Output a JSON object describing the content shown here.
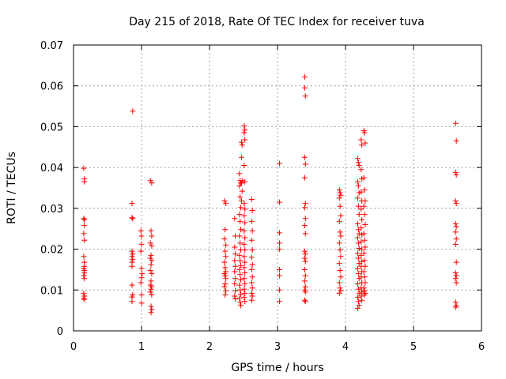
{
  "chart_data": {
    "type": "scatter",
    "title": "Day 215 of 2018, Rate Of TEC Index for receiver tuva",
    "xlabel": "GPS time / hours",
    "ylabel": "ROTI / TECUs",
    "xlim": [
      0,
      6
    ],
    "ylim": [
      0,
      0.07
    ],
    "xticks": [
      "0",
      "1",
      "2",
      "3",
      "4",
      "5",
      "6"
    ],
    "yticks": [
      "0",
      "0.01",
      "0.02",
      "0.03",
      "0.04",
      "0.05",
      "0.06",
      "0.07"
    ],
    "grid": true,
    "marker": "+",
    "color": "#ff0000",
    "series": [
      {
        "name": "ROTI",
        "points": [
          [
            0.15,
            0.0398
          ],
          [
            0.16,
            0.0372
          ],
          [
            0.16,
            0.0365
          ],
          [
            0.15,
            0.0275
          ],
          [
            0.16,
            0.0272
          ],
          [
            0.16,
            0.0258
          ],
          [
            0.15,
            0.0238
          ],
          [
            0.16,
            0.0222
          ],
          [
            0.15,
            0.0182
          ],
          [
            0.16,
            0.0168
          ],
          [
            0.16,
            0.0158
          ],
          [
            0.15,
            0.0152
          ],
          [
            0.16,
            0.0148
          ],
          [
            0.16,
            0.0142
          ],
          [
            0.15,
            0.0135
          ],
          [
            0.16,
            0.0128
          ],
          [
            0.15,
            0.0092
          ],
          [
            0.16,
            0.0085
          ],
          [
            0.15,
            0.008
          ],
          [
            0.16,
            0.0077
          ],
          [
            0.87,
            0.0538
          ],
          [
            0.86,
            0.0312
          ],
          [
            0.86,
            0.0277
          ],
          [
            0.87,
            0.0275
          ],
          [
            0.86,
            0.0195
          ],
          [
            0.87,
            0.0188
          ],
          [
            0.86,
            0.0182
          ],
          [
            0.87,
            0.0175
          ],
          [
            0.86,
            0.0168
          ],
          [
            0.86,
            0.0158
          ],
          [
            0.86,
            0.0112
          ],
          [
            0.87,
            0.0088
          ],
          [
            0.86,
            0.0083
          ],
          [
            0.86,
            0.0072
          ],
          [
            0.99,
            0.0245
          ],
          [
            1.0,
            0.0232
          ],
          [
            1.0,
            0.0212
          ],
          [
            0.99,
            0.0195
          ],
          [
            1.0,
            0.0153
          ],
          [
            1.01,
            0.014
          ],
          [
            1.0,
            0.013
          ],
          [
            0.99,
            0.0118
          ],
          [
            1.0,
            0.0088
          ],
          [
            1.0,
            0.0068
          ],
          [
            1.13,
            0.0368
          ],
          [
            1.15,
            0.0362
          ],
          [
            1.14,
            0.0245
          ],
          [
            1.15,
            0.0232
          ],
          [
            1.13,
            0.0215
          ],
          [
            1.15,
            0.0208
          ],
          [
            1.14,
            0.0185
          ],
          [
            1.13,
            0.0178
          ],
          [
            1.15,
            0.0172
          ],
          [
            1.14,
            0.0162
          ],
          [
            1.13,
            0.0148
          ],
          [
            1.15,
            0.014
          ],
          [
            1.14,
            0.0122
          ],
          [
            1.13,
            0.0112
          ],
          [
            1.15,
            0.0108
          ],
          [
            1.14,
            0.0102
          ],
          [
            1.13,
            0.0095
          ],
          [
            1.15,
            0.0088
          ],
          [
            1.14,
            0.006
          ],
          [
            1.15,
            0.0052
          ],
          [
            1.14,
            0.0045
          ],
          [
            2.22,
            0.0318
          ],
          [
            2.24,
            0.0312
          ],
          [
            2.23,
            0.0248
          ],
          [
            2.22,
            0.0225
          ],
          [
            2.24,
            0.021
          ],
          [
            2.23,
            0.0195
          ],
          [
            2.24,
            0.0182
          ],
          [
            2.22,
            0.0168
          ],
          [
            2.23,
            0.0155
          ],
          [
            2.24,
            0.0145
          ],
          [
            2.22,
            0.014
          ],
          [
            2.23,
            0.0135
          ],
          [
            2.24,
            0.0128
          ],
          [
            2.23,
            0.0115
          ],
          [
            2.22,
            0.0108
          ],
          [
            2.24,
            0.0098
          ],
          [
            2.23,
            0.0088
          ],
          [
            2.37,
            0.0275
          ],
          [
            2.38,
            0.0232
          ],
          [
            2.37,
            0.0205
          ],
          [
            2.38,
            0.0188
          ],
          [
            2.37,
            0.0172
          ],
          [
            2.38,
            0.0158
          ],
          [
            2.37,
            0.0145
          ],
          [
            2.38,
            0.0128
          ],
          [
            2.37,
            0.0115
          ],
          [
            2.38,
            0.0098
          ],
          [
            2.37,
            0.0085
          ],
          [
            2.38,
            0.0078
          ],
          [
            2.44,
            0.0385
          ],
          [
            2.45,
            0.0368
          ],
          [
            2.46,
            0.0362
          ],
          [
            2.44,
            0.0355
          ],
          [
            2.45,
            0.0328
          ],
          [
            2.46,
            0.0302
          ],
          [
            2.44,
            0.0285
          ],
          [
            2.45,
            0.0268
          ],
          [
            2.46,
            0.0248
          ],
          [
            2.44,
            0.0232
          ],
          [
            2.45,
            0.0215
          ],
          [
            2.46,
            0.0198
          ],
          [
            2.44,
            0.0185
          ],
          [
            2.45,
            0.0172
          ],
          [
            2.46,
            0.016
          ],
          [
            2.44,
            0.015
          ],
          [
            2.45,
            0.0138
          ],
          [
            2.46,
            0.0125
          ],
          [
            2.44,
            0.0112
          ],
          [
            2.45,
            0.01
          ],
          [
            2.46,
            0.009
          ],
          [
            2.44,
            0.008
          ],
          [
            2.45,
            0.007
          ],
          [
            2.46,
            0.0062
          ],
          [
            2.47,
            0.0462
          ],
          [
            2.48,
            0.0455
          ],
          [
            2.47,
            0.0425
          ],
          [
            2.48,
            0.0368
          ],
          [
            2.47,
            0.0362
          ],
          [
            2.48,
            0.0342
          ],
          [
            2.47,
            0.0318
          ],
          [
            2.51,
            0.0502
          ],
          [
            2.52,
            0.0492
          ],
          [
            2.51,
            0.0485
          ],
          [
            2.52,
            0.0468
          ],
          [
            2.51,
            0.0405
          ],
          [
            2.52,
            0.0365
          ],
          [
            2.51,
            0.0312
          ],
          [
            2.52,
            0.0298
          ],
          [
            2.51,
            0.0282
          ],
          [
            2.52,
            0.0265
          ],
          [
            2.51,
            0.0245
          ],
          [
            2.52,
            0.0228
          ],
          [
            2.51,
            0.0212
          ],
          [
            2.52,
            0.0198
          ],
          [
            2.51,
            0.0182
          ],
          [
            2.52,
            0.0168
          ],
          [
            2.51,
            0.0155
          ],
          [
            2.52,
            0.0142
          ],
          [
            2.51,
            0.0128
          ],
          [
            2.52,
            0.0115
          ],
          [
            2.51,
            0.0102
          ],
          [
            2.52,
            0.0092
          ],
          [
            2.51,
            0.0082
          ],
          [
            2.52,
            0.0072
          ],
          [
            2.62,
            0.0322
          ],
          [
            2.63,
            0.0295
          ],
          [
            2.62,
            0.0268
          ],
          [
            2.63,
            0.0245
          ],
          [
            2.62,
            0.0222
          ],
          [
            2.63,
            0.0198
          ],
          [
            2.62,
            0.018
          ],
          [
            2.63,
            0.0162
          ],
          [
            2.62,
            0.015
          ],
          [
            2.63,
            0.0132
          ],
          [
            2.62,
            0.0118
          ],
          [
            2.63,
            0.0105
          ],
          [
            2.62,
            0.0092
          ],
          [
            2.63,
            0.0085
          ],
          [
            2.62,
            0.0075
          ],
          [
            3.03,
            0.041
          ],
          [
            3.03,
            0.0315
          ],
          [
            3.03,
            0.024
          ],
          [
            3.03,
            0.0215
          ],
          [
            3.03,
            0.02
          ],
          [
            3.03,
            0.015
          ],
          [
            3.03,
            0.0135
          ],
          [
            3.03,
            0.01
          ],
          [
            3.03,
            0.0072
          ],
          [
            3.4,
            0.0622
          ],
          [
            3.4,
            0.0595
          ],
          [
            3.41,
            0.0575
          ],
          [
            3.4,
            0.0425
          ],
          [
            3.41,
            0.0408
          ],
          [
            3.4,
            0.0375
          ],
          [
            3.41,
            0.0312
          ],
          [
            3.4,
            0.0302
          ],
          [
            3.41,
            0.0275
          ],
          [
            3.4,
            0.0258
          ],
          [
            3.41,
            0.0238
          ],
          [
            3.4,
            0.0195
          ],
          [
            3.41,
            0.0188
          ],
          [
            3.4,
            0.0178
          ],
          [
            3.41,
            0.017
          ],
          [
            3.4,
            0.015
          ],
          [
            3.41,
            0.0135
          ],
          [
            3.4,
            0.0122
          ],
          [
            3.41,
            0.0108
          ],
          [
            3.4,
            0.01
          ],
          [
            3.41,
            0.0095
          ],
          [
            3.4,
            0.0075
          ],
          [
            3.41,
            0.0072
          ],
          [
            3.91,
            0.0345
          ],
          [
            3.92,
            0.0338
          ],
          [
            3.93,
            0.0332
          ],
          [
            3.91,
            0.0325
          ],
          [
            3.92,
            0.0305
          ],
          [
            3.93,
            0.0282
          ],
          [
            3.91,
            0.0268
          ],
          [
            3.92,
            0.0242
          ],
          [
            3.93,
            0.0232
          ],
          [
            3.91,
            0.0215
          ],
          [
            3.92,
            0.0198
          ],
          [
            3.93,
            0.0182
          ],
          [
            3.91,
            0.0165
          ],
          [
            3.92,
            0.0148
          ],
          [
            3.93,
            0.0132
          ],
          [
            3.91,
            0.0118
          ],
          [
            3.92,
            0.0105
          ],
          [
            3.93,
            0.0098
          ],
          [
            3.91,
            0.0092
          ],
          [
            4.18,
            0.0422
          ],
          [
            4.19,
            0.0412
          ],
          [
            4.2,
            0.0405
          ],
          [
            4.18,
            0.0365
          ],
          [
            4.19,
            0.0355
          ],
          [
            4.2,
            0.0338
          ],
          [
            4.18,
            0.0325
          ],
          [
            4.19,
            0.0305
          ],
          [
            4.2,
            0.0285
          ],
          [
            4.18,
            0.0262
          ],
          [
            4.19,
            0.0248
          ],
          [
            4.2,
            0.0238
          ],
          [
            4.18,
            0.0228
          ],
          [
            4.19,
            0.0215
          ],
          [
            4.2,
            0.0202
          ],
          [
            4.18,
            0.019
          ],
          [
            4.19,
            0.0178
          ],
          [
            4.2,
            0.0165
          ],
          [
            4.18,
            0.0152
          ],
          [
            4.19,
            0.014
          ],
          [
            4.2,
            0.0128
          ],
          [
            4.18,
            0.0115
          ],
          [
            4.19,
            0.0102
          ],
          [
            4.2,
            0.0092
          ],
          [
            4.18,
            0.0082
          ],
          [
            4.19,
            0.0072
          ],
          [
            4.2,
            0.0062
          ],
          [
            4.18,
            0.0055
          ],
          [
            4.23,
            0.0468
          ],
          [
            4.24,
            0.0455
          ],
          [
            4.23,
            0.0395
          ],
          [
            4.24,
            0.0372
          ],
          [
            4.23,
            0.034
          ],
          [
            4.24,
            0.0318
          ],
          [
            4.23,
            0.0298
          ],
          [
            4.24,
            0.0272
          ],
          [
            4.23,
            0.0252
          ],
          [
            4.24,
            0.0235
          ],
          [
            4.23,
            0.0218
          ],
          [
            4.24,
            0.02
          ],
          [
            4.23,
            0.0185
          ],
          [
            4.24,
            0.017
          ],
          [
            4.23,
            0.0158
          ],
          [
            4.24,
            0.0145
          ],
          [
            4.23,
            0.0132
          ],
          [
            4.24,
            0.0118
          ],
          [
            4.23,
            0.0105
          ],
          [
            4.24,
            0.0095
          ],
          [
            4.23,
            0.0085
          ],
          [
            4.24,
            0.0075
          ],
          [
            4.27,
            0.049
          ],
          [
            4.28,
            0.0485
          ],
          [
            4.29,
            0.046
          ],
          [
            4.27,
            0.0375
          ],
          [
            4.28,
            0.0345
          ],
          [
            4.29,
            0.0318
          ],
          [
            4.27,
            0.0305
          ],
          [
            4.28,
            0.0285
          ],
          [
            4.29,
            0.026
          ],
          [
            4.27,
            0.0238
          ],
          [
            4.28,
            0.0222
          ],
          [
            4.29,
            0.0205
          ],
          [
            4.27,
            0.019
          ],
          [
            4.28,
            0.0172
          ],
          [
            4.29,
            0.0158
          ],
          [
            4.27,
            0.0145
          ],
          [
            4.28,
            0.0132
          ],
          [
            4.29,
            0.0118
          ],
          [
            4.27,
            0.0105
          ],
          [
            4.28,
            0.0098
          ],
          [
            4.29,
            0.0092
          ],
          [
            4.28,
            0.0088
          ],
          [
            5.62,
            0.0508
          ],
          [
            5.63,
            0.0465
          ],
          [
            5.62,
            0.0388
          ],
          [
            5.63,
            0.0382
          ],
          [
            5.62,
            0.0318
          ],
          [
            5.63,
            0.0312
          ],
          [
            5.62,
            0.0262
          ],
          [
            5.63,
            0.0255
          ],
          [
            5.62,
            0.0242
          ],
          [
            5.63,
            0.0225
          ],
          [
            5.62,
            0.0212
          ],
          [
            5.63,
            0.0168
          ],
          [
            5.62,
            0.0142
          ],
          [
            5.63,
            0.0135
          ],
          [
            5.62,
            0.0128
          ],
          [
            5.63,
            0.0118
          ],
          [
            5.62,
            0.007
          ],
          [
            5.63,
            0.0062
          ],
          [
            5.62,
            0.0058
          ]
        ]
      }
    ]
  }
}
